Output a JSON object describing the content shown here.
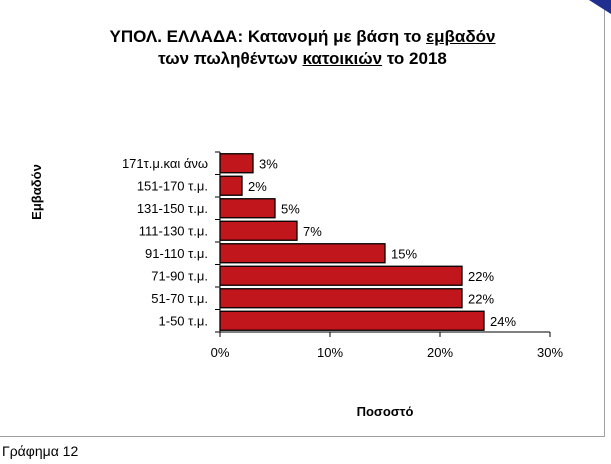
{
  "chart_data": {
    "type": "bar",
    "orientation": "horizontal",
    "title_parts": [
      {
        "text": "ΥΠΟΛ. ΕΛΛΑΔΑ: Κατανομή με βάση το ",
        "underline": false
      },
      {
        "text": "εμβαδόν",
        "underline": true
      },
      {
        "text": "\n",
        "underline": false
      },
      {
        "text": "των πωληθέντων ",
        "underline": false
      },
      {
        "text": "κατοικιών",
        "underline": true
      },
      {
        "text": " το 2018",
        "underline": false
      }
    ],
    "xlabel": "Ποσοστό",
    "ylabel": "Εμβαδόν",
    "categories": [
      "171τ.μ.και άνω",
      "151-170 τ.μ.",
      "131-150 τ.μ.",
      "111-130 τ.μ.",
      "91-110 τ.μ.",
      "71-90 τ.μ.",
      "51-70 τ.μ.",
      "1-50 τ.μ."
    ],
    "values": [
      3,
      2,
      5,
      7,
      15,
      22,
      22,
      24
    ],
    "value_labels": [
      "3%",
      "2%",
      "5%",
      "7%",
      "15%",
      "22%",
      "22%",
      "24%"
    ],
    "xlim": [
      0,
      30
    ],
    "xticks": [
      0,
      10,
      20,
      30
    ],
    "xtick_labels": [
      "0%",
      "10%",
      "20%",
      "30%"
    ],
    "bar_color": "#c0161c",
    "grid": false,
    "legend": "none"
  },
  "caption": "Γράφημα 12",
  "colors": {
    "corner_mark": "#1f2f8f"
  }
}
